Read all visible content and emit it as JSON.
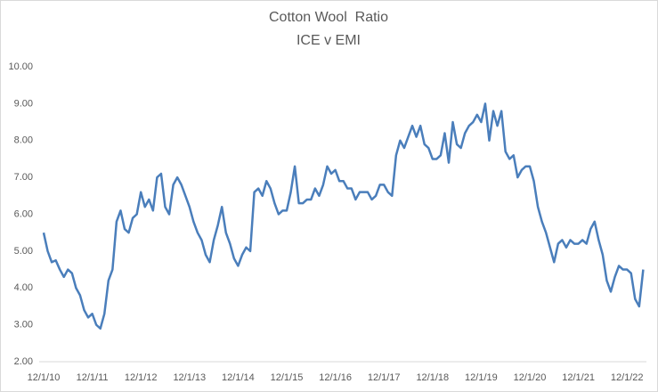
{
  "chart_data": {
    "type": "line",
    "title": "Cotton Wool  Ratio",
    "subtitle": "ICE v EMI",
    "x": [
      "12/1/10",
      "1/1/11",
      "2/1/11",
      "3/1/11",
      "4/1/11",
      "5/1/11",
      "6/1/11",
      "7/1/11",
      "8/1/11",
      "9/1/11",
      "10/1/11",
      "11/1/11",
      "12/1/11",
      "1/1/12",
      "2/1/12",
      "3/1/12",
      "4/1/12",
      "5/1/12",
      "6/1/12",
      "7/1/12",
      "8/1/12",
      "9/1/12",
      "10/1/12",
      "11/1/12",
      "12/1/12",
      "1/1/13",
      "2/1/13",
      "3/1/13",
      "4/1/13",
      "5/1/13",
      "6/1/13",
      "7/1/13",
      "8/1/13",
      "9/1/13",
      "10/1/13",
      "11/1/13",
      "12/1/13",
      "1/1/14",
      "2/1/14",
      "3/1/14",
      "4/1/14",
      "5/1/14",
      "6/1/14",
      "7/1/14",
      "8/1/14",
      "9/1/14",
      "10/1/14",
      "11/1/14",
      "12/1/14",
      "1/1/15",
      "2/1/15",
      "3/1/15",
      "4/1/15",
      "5/1/15",
      "6/1/15",
      "7/1/15",
      "8/1/15",
      "9/1/15",
      "10/1/15",
      "11/1/15",
      "12/1/15",
      "1/1/16",
      "2/1/16",
      "3/1/16",
      "4/1/16",
      "5/1/16",
      "6/1/16",
      "7/1/16",
      "8/1/16",
      "9/1/16",
      "10/1/16",
      "11/1/16",
      "12/1/16",
      "1/1/17",
      "2/1/17",
      "3/1/17",
      "4/1/17",
      "5/1/17",
      "6/1/17",
      "7/1/17",
      "8/1/17",
      "9/1/17",
      "10/1/17",
      "11/1/17",
      "12/1/17",
      "1/1/18",
      "2/1/18",
      "3/1/18",
      "4/1/18",
      "5/1/18",
      "6/1/18",
      "7/1/18",
      "8/1/18",
      "9/1/18",
      "10/1/18",
      "11/1/18",
      "12/1/18",
      "1/1/19",
      "2/1/19",
      "3/1/19",
      "4/1/19",
      "5/1/19",
      "6/1/19",
      "7/1/19",
      "8/1/19",
      "9/1/19",
      "10/1/19",
      "11/1/19",
      "12/1/19",
      "1/1/20",
      "2/1/20",
      "3/1/20",
      "4/1/20",
      "5/1/20",
      "6/1/20",
      "7/1/20",
      "8/1/20",
      "9/1/20",
      "10/1/20",
      "11/1/20",
      "12/1/20",
      "1/1/21",
      "2/1/21",
      "3/1/21",
      "4/1/21",
      "5/1/21",
      "6/1/21",
      "7/1/21",
      "8/1/21",
      "9/1/21",
      "10/1/21",
      "11/1/21",
      "12/1/21",
      "1/1/22",
      "2/1/22",
      "3/1/22",
      "4/1/22",
      "5/1/22",
      "6/1/22",
      "7/1/22",
      "8/1/22",
      "9/1/22",
      "10/1/22",
      "11/1/22",
      "12/1/22",
      "1/1/23",
      "2/1/23",
      "3/1/23",
      "4/1/23"
    ],
    "series": [
      {
        "color": "#4a7ebb",
        "values": [
          5.5,
          5.0,
          4.7,
          4.75,
          4.5,
          4.3,
          4.5,
          4.4,
          4.0,
          3.8,
          3.4,
          3.2,
          3.3,
          3.0,
          2.9,
          3.3,
          4.2,
          4.5,
          5.8,
          6.1,
          5.6,
          5.5,
          5.9,
          6.0,
          6.6,
          6.2,
          6.4,
          6.1,
          7.0,
          7.1,
          6.2,
          6.0,
          6.8,
          7.0,
          6.8,
          6.5,
          6.2,
          5.8,
          5.5,
          5.3,
          4.9,
          4.7,
          5.3,
          5.7,
          6.2,
          5.5,
          5.2,
          4.8,
          4.6,
          4.9,
          5.1,
          5.0,
          6.6,
          6.7,
          6.5,
          6.9,
          6.7,
          6.3,
          6.0,
          6.1,
          6.1,
          6.6,
          7.3,
          6.3,
          6.3,
          6.4,
          6.4,
          6.7,
          6.5,
          6.8,
          7.3,
          7.1,
          7.2,
          6.9,
          6.9,
          6.7,
          6.7,
          6.4,
          6.6,
          6.6,
          6.6,
          6.4,
          6.5,
          6.8,
          6.8,
          6.6,
          6.5,
          7.6,
          8.0,
          7.8,
          8.1,
          8.4,
          8.1,
          8.4,
          7.9,
          7.8,
          7.5,
          7.5,
          7.6,
          8.2,
          7.4,
          8.5,
          7.9,
          7.8,
          8.2,
          8.4,
          8.5,
          8.7,
          8.5,
          9.0,
          8.0,
          8.8,
          8.4,
          8.8,
          7.7,
          7.5,
          7.6,
          7.0,
          7.2,
          7.3,
          7.3,
          6.9,
          6.2,
          5.8,
          5.5,
          5.1,
          4.7,
          5.2,
          5.3,
          5.1,
          5.3,
          5.2,
          5.2,
          5.3,
          5.2,
          5.6,
          5.8,
          5.3,
          4.9,
          4.2,
          3.9,
          4.3,
          4.6,
          4.5,
          4.5,
          4.4,
          3.7,
          3.5,
          4.5
        ]
      }
    ],
    "xticks": [
      "12/1/10",
      "12/1/11",
      "12/1/12",
      "12/1/13",
      "12/1/14",
      "12/1/15",
      "12/1/16",
      "12/1/17",
      "12/1/18",
      "12/1/19",
      "12/1/20",
      "12/1/21",
      "12/1/22"
    ],
    "ylim": [
      2,
      10
    ],
    "yticks": [
      {
        "value": 2,
        "label": "2.00"
      },
      {
        "value": 3,
        "label": "3.00"
      },
      {
        "value": 4,
        "label": "4.00"
      },
      {
        "value": 5,
        "label": "5.00"
      },
      {
        "value": 6,
        "label": "6.00"
      },
      {
        "value": 7,
        "label": "7.00"
      },
      {
        "value": 8,
        "label": "8.00"
      },
      {
        "value": 9,
        "label": "9.00"
      },
      {
        "value": 10,
        "label": "10.00"
      }
    ],
    "grid": false
  }
}
